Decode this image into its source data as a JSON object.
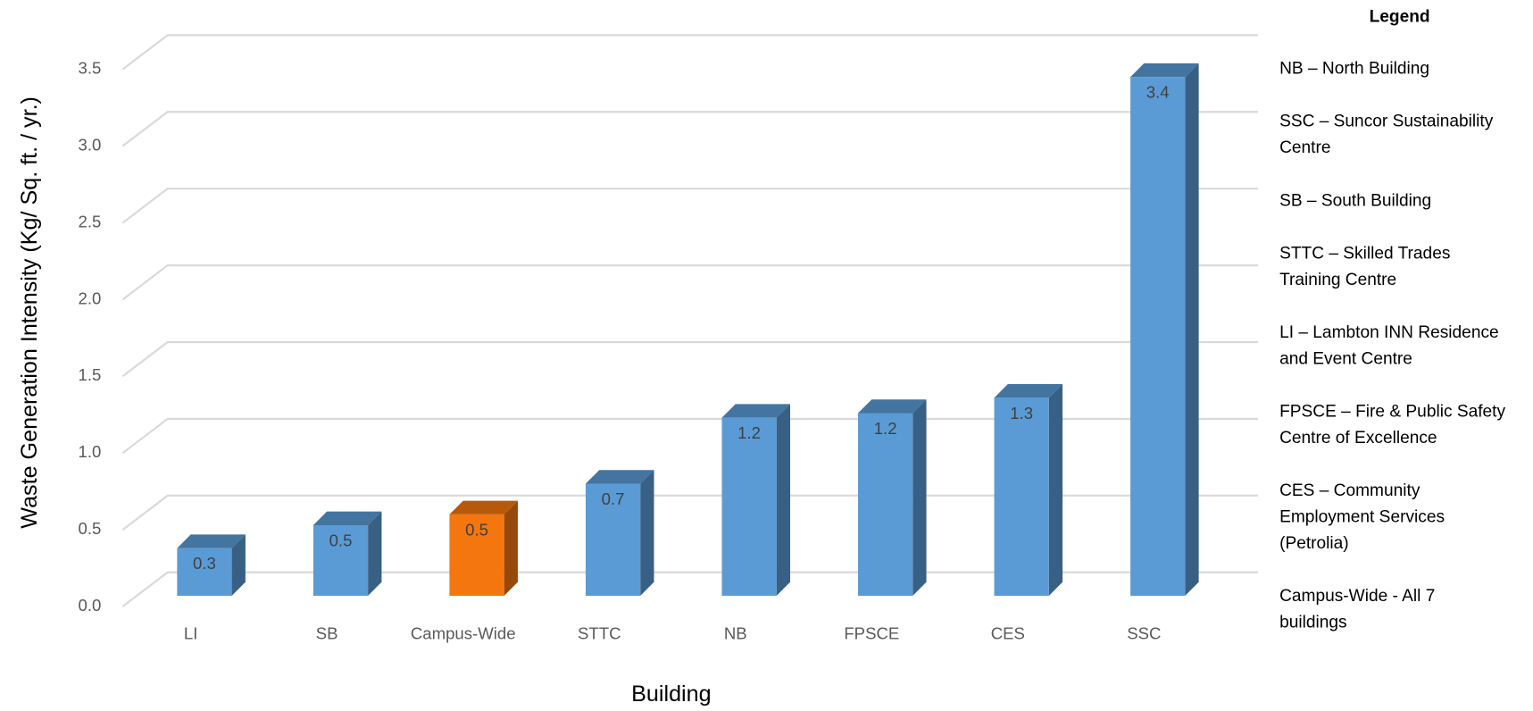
{
  "chart_data": {
    "type": "bar3d",
    "y_axis_title": "Waste Generation Intensity (Kg/ Sq. ft. / yr.)",
    "x_axis_title": "Building",
    "categories": [
      "LI",
      "SB",
      "Campus-Wide",
      "STTC",
      "NB",
      "FPSCE",
      "CES",
      "SSC"
    ],
    "values": [
      0.31,
      0.46,
      0.53,
      0.73,
      1.16,
      1.19,
      1.29,
      3.38
    ],
    "value_labels": [
      "0.3",
      "0.5",
      "0.5",
      "0.7",
      "1.2",
      "1.2",
      "1.3",
      "3.4"
    ],
    "colors": [
      "#5b9bd5",
      "#5b9bd5",
      "#f4760f",
      "#5b9bd5",
      "#5b9bd5",
      "#5b9bd5",
      "#5b9bd5",
      "#5b9bd5"
    ],
    "ylim": [
      0,
      3.5
    ],
    "yticks": [
      {
        "value": 0,
        "label": "0.0"
      },
      0.5,
      {
        "value": 1,
        "label": "1.0"
      },
      1.5,
      {
        "value": 2,
        "label": "2.0"
      },
      2.5,
      {
        "value": 3,
        "label": "3.0"
      },
      3.5
    ],
    "grid": true,
    "legend_title": "Legend",
    "legend_entries": [
      [
        "NB – North Building"
      ],
      [
        "SSC – Suncor Sustainability",
        "Centre"
      ],
      [
        "SB – South Building"
      ],
      [
        "STTC – Skilled Trades",
        "Training Centre"
      ],
      [
        "LI – Lambton INN Residence",
        "and Event Centre"
      ],
      [
        "FPSCE – Fire & Public Safety",
        "Centre of Excellence"
      ],
      [
        "CES – Community",
        "Employment Services",
        "(Petrolia)"
      ],
      [
        "Campus-Wide - All 7",
        "buildings"
      ]
    ]
  }
}
